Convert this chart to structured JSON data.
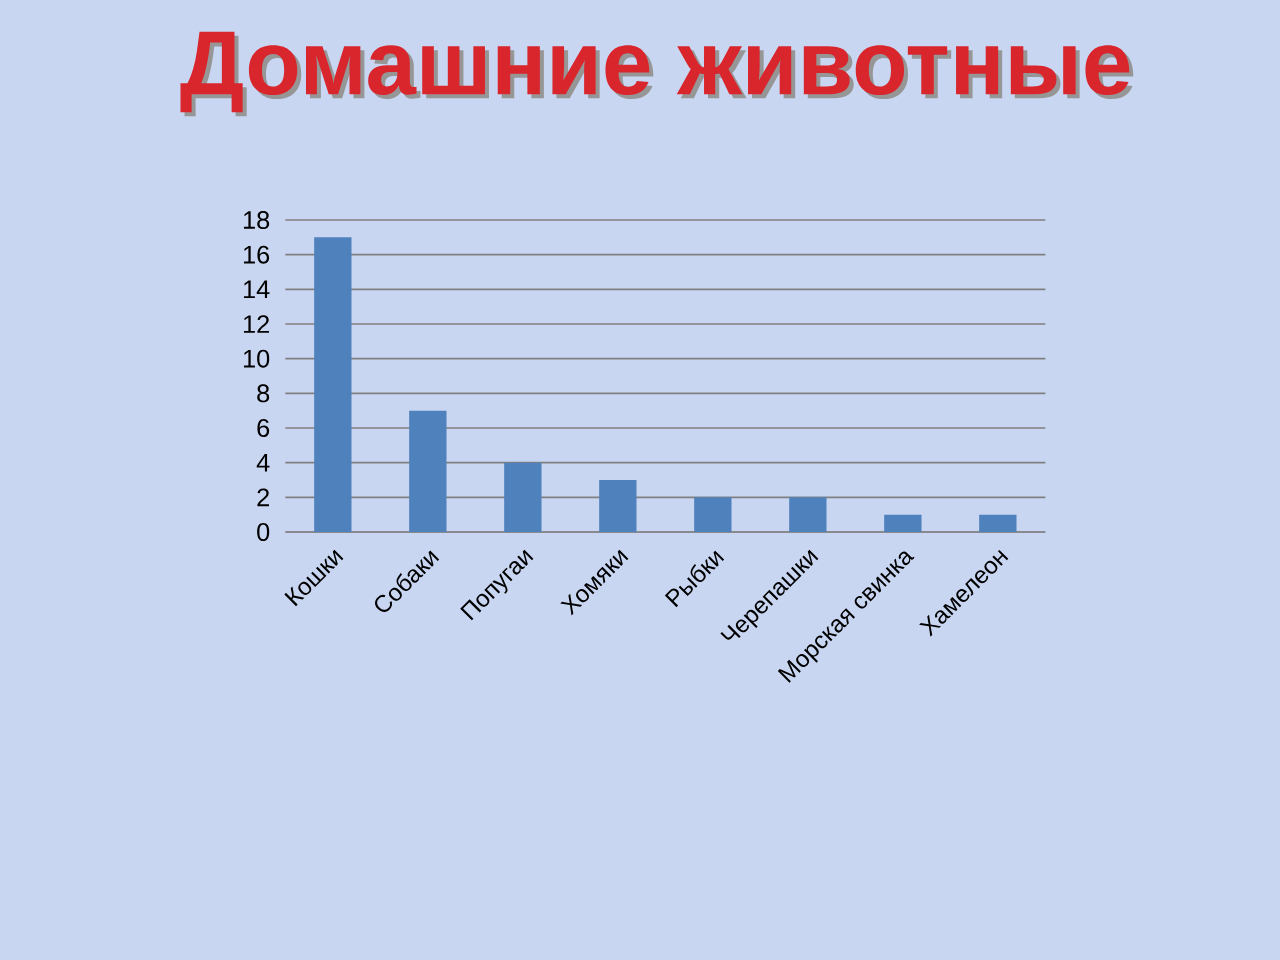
{
  "chart_data": {
    "type": "bar",
    "title": "Домашние животные",
    "categories": [
      "Кошки",
      "Собаки",
      "Попугаи",
      "Хомяки",
      "Рыбки",
      "Черепашки",
      "Морская свинка",
      "Хамелеон"
    ],
    "values": [
      17,
      7,
      4,
      3,
      2,
      2,
      1,
      1
    ],
    "color": "#4f81bd",
    "ylim": [
      0,
      18
    ],
    "yticks": [
      0,
      2,
      4,
      6,
      8,
      10,
      12,
      14,
      16,
      18
    ],
    "grid": "y"
  }
}
